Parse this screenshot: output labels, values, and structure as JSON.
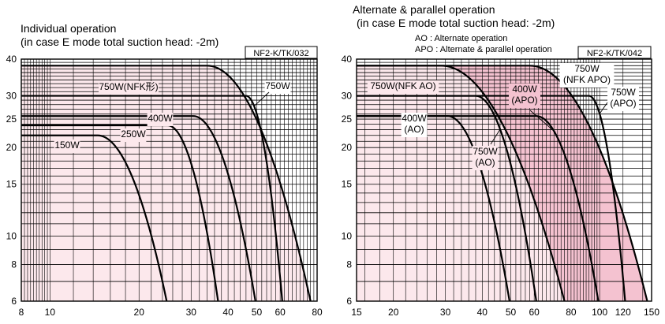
{
  "left": {
    "title": "Individual operation",
    "subtitle": "(in case E mode total suction head: -2m)",
    "model_box": "NF2-K/TK/032"
  },
  "right": {
    "title": "Alternate & parallel operation",
    "subtitle": "(in case E mode total suction head: -2m)",
    "legend_ao": "AO : Alternate operation",
    "legend_apo": "APO : Alternate & parallel operation",
    "model_box": "NF2-K/TK/042"
  },
  "colors": {
    "left_fill": "#fce8ec",
    "right_fill_light": "#fce8ec",
    "right_fill_dark": "#f4c2d0",
    "grid": "#000000"
  },
  "chart_data": [
    {
      "type": "line",
      "scale": "log-log",
      "grid": true,
      "xlim": [
        8,
        80
      ],
      "ylim": [
        6,
        40
      ],
      "x_ticks": [
        8,
        10,
        20,
        30,
        40,
        50,
        60,
        80
      ],
      "y_ticks": [
        6,
        8,
        10,
        15,
        20,
        25,
        30,
        40
      ],
      "series": [
        {
          "name": "150W",
          "label_lines": [
            "150W"
          ],
          "flat_y": 22,
          "knee_x": 14.5,
          "end_x": 24.8
        },
        {
          "name": "250W",
          "label_lines": [
            "250W"
          ],
          "flat_y": 23.8,
          "knee_x": 25,
          "end_x": 37
        },
        {
          "name": "400W",
          "label_lines": [
            "400W"
          ],
          "flat_y": 25.6,
          "knee_x": 30.5,
          "end_x": 49.5
        },
        {
          "name": "750W",
          "label_lines": [
            "750W"
          ],
          "flat_y": 30,
          "knee_x": 46,
          "end_x": 61
        },
        {
          "name": "750W(NFK形)",
          "label_lines": [
            "750W(NFK形)"
          ],
          "flat_y": 38,
          "knee_x": 34,
          "end_x": 76
        }
      ]
    },
    {
      "type": "line",
      "scale": "log-log",
      "grid": true,
      "xlim": [
        15,
        150
      ],
      "ylim": [
        6,
        40
      ],
      "x_ticks": [
        15,
        20,
        30,
        40,
        50,
        60,
        80,
        100,
        120,
        150
      ],
      "y_ticks": [
        6,
        8,
        10,
        15,
        20,
        25,
        30,
        40
      ],
      "series": [
        {
          "name": "400W(AO)",
          "label_lines": [
            "400W",
            "(AO)"
          ],
          "flat_y": 25.6,
          "knee_x": 30.5,
          "end_x": 49.5
        },
        {
          "name": "750W(AO)",
          "label_lines": [
            "750W",
            "(AO)"
          ],
          "flat_y": 30,
          "knee_x": 38,
          "end_x": 61
        },
        {
          "name": "750W(NFK AO)",
          "label_lines": [
            "750W(NFK AO)"
          ],
          "flat_y": 38,
          "knee_x": 29,
          "end_x": 76
        },
        {
          "name": "400W(APO)",
          "label_lines": [
            "400W",
            "(APO)"
          ],
          "flat_y": 25.6,
          "knee_x": 61,
          "end_x": 99
        },
        {
          "name": "750W(APO)",
          "label_lines": [
            "750W",
            "(APO)"
          ],
          "flat_y": 30,
          "knee_x": 92,
          "end_x": 122
        },
        {
          "name": "750W(NFK APO)",
          "label_lines": [
            "750W",
            "(NFK APO)"
          ],
          "flat_y": 38,
          "knee_x": 58,
          "end_x": 145
        }
      ]
    }
  ]
}
